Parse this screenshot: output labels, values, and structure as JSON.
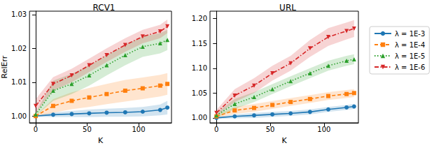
{
  "chart_data": [
    {
      "type": "line",
      "title": "RCV1",
      "x_label": "K",
      "y_label": "RelErr",
      "x": [
        0,
        17,
        35,
        52,
        69,
        87,
        104,
        121,
        128
      ],
      "xlim": [
        -6,
        132
      ],
      "xticks": [
        0,
        50,
        100
      ],
      "ylim": [
        0.998,
        1.031
      ],
      "yticks": [
        {
          "value": 1.0,
          "label": "1.00"
        },
        {
          "value": 1.01,
          "label": "1.01"
        },
        {
          "value": 1.02,
          "label": "1.02"
        },
        {
          "value": 1.03,
          "label": "1.03"
        }
      ],
      "grid": false,
      "series": [
        {
          "name": "λ = 1E-3",
          "color": "#1f77b4",
          "marker": "circle",
          "line_style": "solid",
          "values": [
            1.0,
            1.0004,
            1.0006,
            1.0008,
            1.001,
            1.0011,
            1.0013,
            1.0018,
            1.0025
          ],
          "lower": [
            0.9998,
            0.9997,
            0.9997,
            0.9997,
            0.9998,
            0.9998,
            0.9999,
            1.0002,
            1.0005
          ],
          "upper": [
            1.0002,
            1.0011,
            1.0015,
            1.0019,
            1.0022,
            1.0024,
            1.0027,
            1.0034,
            1.0045
          ]
        },
        {
          "name": "λ = 1E-4",
          "color": "#ff7f0e",
          "marker": "square",
          "line_style": "dashed",
          "values": [
            1.0,
            1.003,
            1.0045,
            1.0055,
            1.0065,
            1.0075,
            1.0082,
            1.009,
            1.0095
          ],
          "lower": [
            0.9998,
            1.001,
            1.002,
            1.0027,
            1.0035,
            1.0043,
            1.005,
            1.0058,
            1.0063
          ],
          "upper": [
            1.0002,
            1.005,
            1.007,
            1.0083,
            1.0095,
            1.0107,
            1.0114,
            1.0122,
            1.0127
          ]
        },
        {
          "name": "λ = 1E-5",
          "color": "#2ca02c",
          "marker": "triangle",
          "line_style": "dotted",
          "values": [
            1.0005,
            1.0075,
            1.0095,
            1.012,
            1.015,
            1.018,
            1.0205,
            1.0215,
            1.0225
          ],
          "lower": [
            1.0,
            1.0045,
            1.0065,
            1.009,
            1.012,
            1.015,
            1.0175,
            1.0185,
            1.0195
          ],
          "upper": [
            1.001,
            1.0105,
            1.0125,
            1.015,
            1.018,
            1.021,
            1.0235,
            1.0245,
            1.0255
          ]
        },
        {
          "name": "λ = 1E-6",
          "color": "#d62728",
          "marker": "triangle_down",
          "line_style": "dashdot",
          "values": [
            1.003,
            1.0095,
            1.012,
            1.015,
            1.018,
            1.021,
            1.0235,
            1.025,
            1.0265
          ],
          "lower": [
            1.001,
            1.0075,
            1.01,
            1.013,
            1.016,
            1.019,
            1.0215,
            1.023,
            1.0245
          ],
          "upper": [
            1.005,
            1.0115,
            1.014,
            1.017,
            1.02,
            1.023,
            1.0255,
            1.027,
            1.0285
          ]
        }
      ]
    },
    {
      "type": "line",
      "title": "URL",
      "x_label": "K",
      "x": [
        0,
        17,
        35,
        52,
        69,
        87,
        104,
        121,
        128
      ],
      "xlim": [
        -6,
        132
      ],
      "xticks": [
        0,
        50,
        100
      ],
      "ylim": [
        0.99,
        1.215
      ],
      "yticks": [
        {
          "value": 1.0,
          "label": "1.00"
        },
        {
          "value": 1.05,
          "label": "1.05"
        },
        {
          "value": 1.1,
          "label": "1.10"
        },
        {
          "value": 1.15,
          "label": "1.15"
        },
        {
          "value": 1.2,
          "label": "1.20"
        }
      ],
      "grid": false,
      "legend": "right",
      "series": [
        {
          "name": "λ = 1E-3",
          "color": "#1f77b4",
          "marker": "circle",
          "line_style": "solid",
          "values": [
            1.0,
            1.003,
            1.005,
            1.007,
            1.009,
            1.012,
            1.017,
            1.021,
            1.023
          ],
          "lower": [
            0.998,
            0.999,
            1.0,
            1.002,
            1.004,
            1.007,
            1.012,
            1.016,
            1.018
          ],
          "upper": [
            1.002,
            1.007,
            1.01,
            1.012,
            1.014,
            1.017,
            1.022,
            1.026,
            1.028
          ]
        },
        {
          "name": "λ = 1E-4",
          "color": "#ff7f0e",
          "marker": "square",
          "line_style": "dashed",
          "values": [
            1.003,
            1.015,
            1.02,
            1.026,
            1.032,
            1.038,
            1.044,
            1.048,
            1.05
          ],
          "lower": [
            1.0,
            1.008,
            1.012,
            1.018,
            1.024,
            1.03,
            1.036,
            1.04,
            1.042
          ],
          "upper": [
            1.006,
            1.022,
            1.028,
            1.034,
            1.04,
            1.046,
            1.052,
            1.056,
            1.058
          ]
        },
        {
          "name": "λ = 1E-5",
          "color": "#2ca02c",
          "marker": "triangle",
          "line_style": "dotted",
          "values": [
            1.005,
            1.028,
            1.042,
            1.058,
            1.074,
            1.09,
            1.105,
            1.115,
            1.118
          ],
          "lower": [
            1.0,
            1.018,
            1.032,
            1.048,
            1.064,
            1.08,
            1.095,
            1.105,
            1.108
          ],
          "upper": [
            1.01,
            1.038,
            1.052,
            1.068,
            1.084,
            1.1,
            1.115,
            1.125,
            1.128
          ]
        },
        {
          "name": "λ = 1E-6",
          "color": "#d62728",
          "marker": "triangle_down",
          "line_style": "dashdot",
          "values": [
            1.01,
            1.045,
            1.065,
            1.09,
            1.11,
            1.14,
            1.163,
            1.175,
            1.18
          ],
          "lower": [
            1.004,
            1.032,
            1.05,
            1.075,
            1.095,
            1.123,
            1.145,
            1.158,
            1.163
          ],
          "upper": [
            1.016,
            1.058,
            1.08,
            1.105,
            1.125,
            1.157,
            1.181,
            1.192,
            1.197
          ]
        }
      ]
    }
  ]
}
